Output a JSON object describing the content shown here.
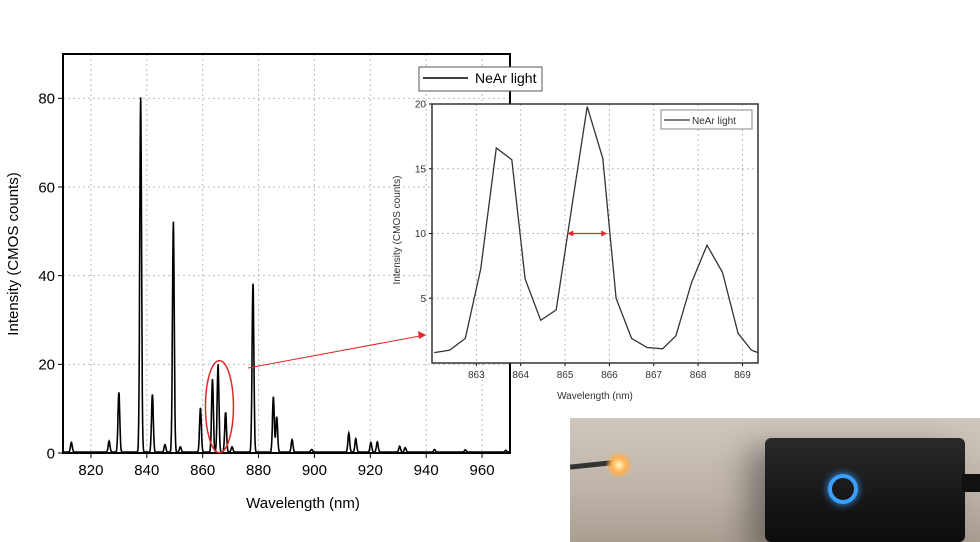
{
  "chart_data": [
    {
      "type": "line",
      "xlabel": "Wavelength (nm)",
      "ylabel": "Intensity (CMOS counts)",
      "xlim": [
        810,
        970
      ],
      "ylim": [
        0,
        90
      ],
      "xticks": [
        820,
        840,
        860,
        880,
        900,
        920,
        940,
        960
      ],
      "yticks": [
        0,
        20,
        40,
        60,
        80
      ],
      "grid": true,
      "legend": {
        "position": "top-right",
        "entries": [
          "NeAr light"
        ]
      },
      "series": [
        {
          "name": "NeAr light",
          "color": "#000000",
          "peaks": [
            {
              "x": 813,
              "y": 2.2
            },
            {
              "x": 826.5,
              "y": 2.5
            },
            {
              "x": 830,
              "y": 13.5
            },
            {
              "x": 837.8,
              "y": 80
            },
            {
              "x": 842,
              "y": 13
            },
            {
              "x": 846.5,
              "y": 1.7
            },
            {
              "x": 849.5,
              "y": 52
            },
            {
              "x": 852,
              "y": 1.2
            },
            {
              "x": 859.2,
              "y": 10
            },
            {
              "x": 863.5,
              "y": 16.5
            },
            {
              "x": 865.5,
              "y": 19.8
            },
            {
              "x": 868.2,
              "y": 9
            },
            {
              "x": 870.5,
              "y": 1.2
            },
            {
              "x": 878,
              "y": 38
            },
            {
              "x": 885.3,
              "y": 12.5
            },
            {
              "x": 886.5,
              "y": 8
            },
            {
              "x": 892,
              "y": 2.8
            },
            {
              "x": 899,
              "y": 0.6
            },
            {
              "x": 912.3,
              "y": 4.3
            },
            {
              "x": 914.8,
              "y": 3
            },
            {
              "x": 920.2,
              "y": 2.2
            },
            {
              "x": 922.5,
              "y": 2.3
            },
            {
              "x": 930.5,
              "y": 1.3
            },
            {
              "x": 932.5,
              "y": 1
            },
            {
              "x": 943,
              "y": 0.6
            },
            {
              "x": 954,
              "y": 0.5
            },
            {
              "x": 968.5,
              "y": 0.4
            }
          ]
        }
      ],
      "annotation": {
        "type": "ellipse",
        "color": "#e0282a",
        "x": 866,
        "y": 10
      }
    },
    {
      "type": "line",
      "xlabel": "Wavelength (nm)",
      "ylabel": "Intensity (CMOS counts)",
      "xlim": [
        862,
        869.35
      ],
      "ylim": [
        0,
        20
      ],
      "xticks": [
        863,
        864,
        865,
        866,
        867,
        868,
        869
      ],
      "yticks": [
        5,
        10,
        15,
        20
      ],
      "grid": true,
      "legend": {
        "position": "top-right",
        "entries": [
          "NeAr light"
        ]
      },
      "series": [
        {
          "name": "NeAr light",
          "color": "#333333",
          "x": [
            862.05,
            862.4,
            862.75,
            863.1,
            863.45,
            863.8,
            864.1,
            864.45,
            864.8,
            865.15,
            865.5,
            865.85,
            866.15,
            866.5,
            866.85,
            867.2,
            867.5,
            867.85,
            868.2,
            868.55,
            868.9,
            869.2,
            869.35
          ],
          "y": [
            0.8,
            1.0,
            1.9,
            7.3,
            16.6,
            15.7,
            6.5,
            3.3,
            4.1,
            12,
            19.8,
            15.8,
            5,
            1.9,
            1.2,
            1.1,
            2.1,
            6.2,
            9.1,
            7.0,
            2.3,
            1.0,
            0.8
          ]
        }
      ],
      "annotation": {
        "type": "double-arrow",
        "color": "#e0282a",
        "x": [
          865.05,
          865.95
        ],
        "y": 10
      }
    }
  ]
}
